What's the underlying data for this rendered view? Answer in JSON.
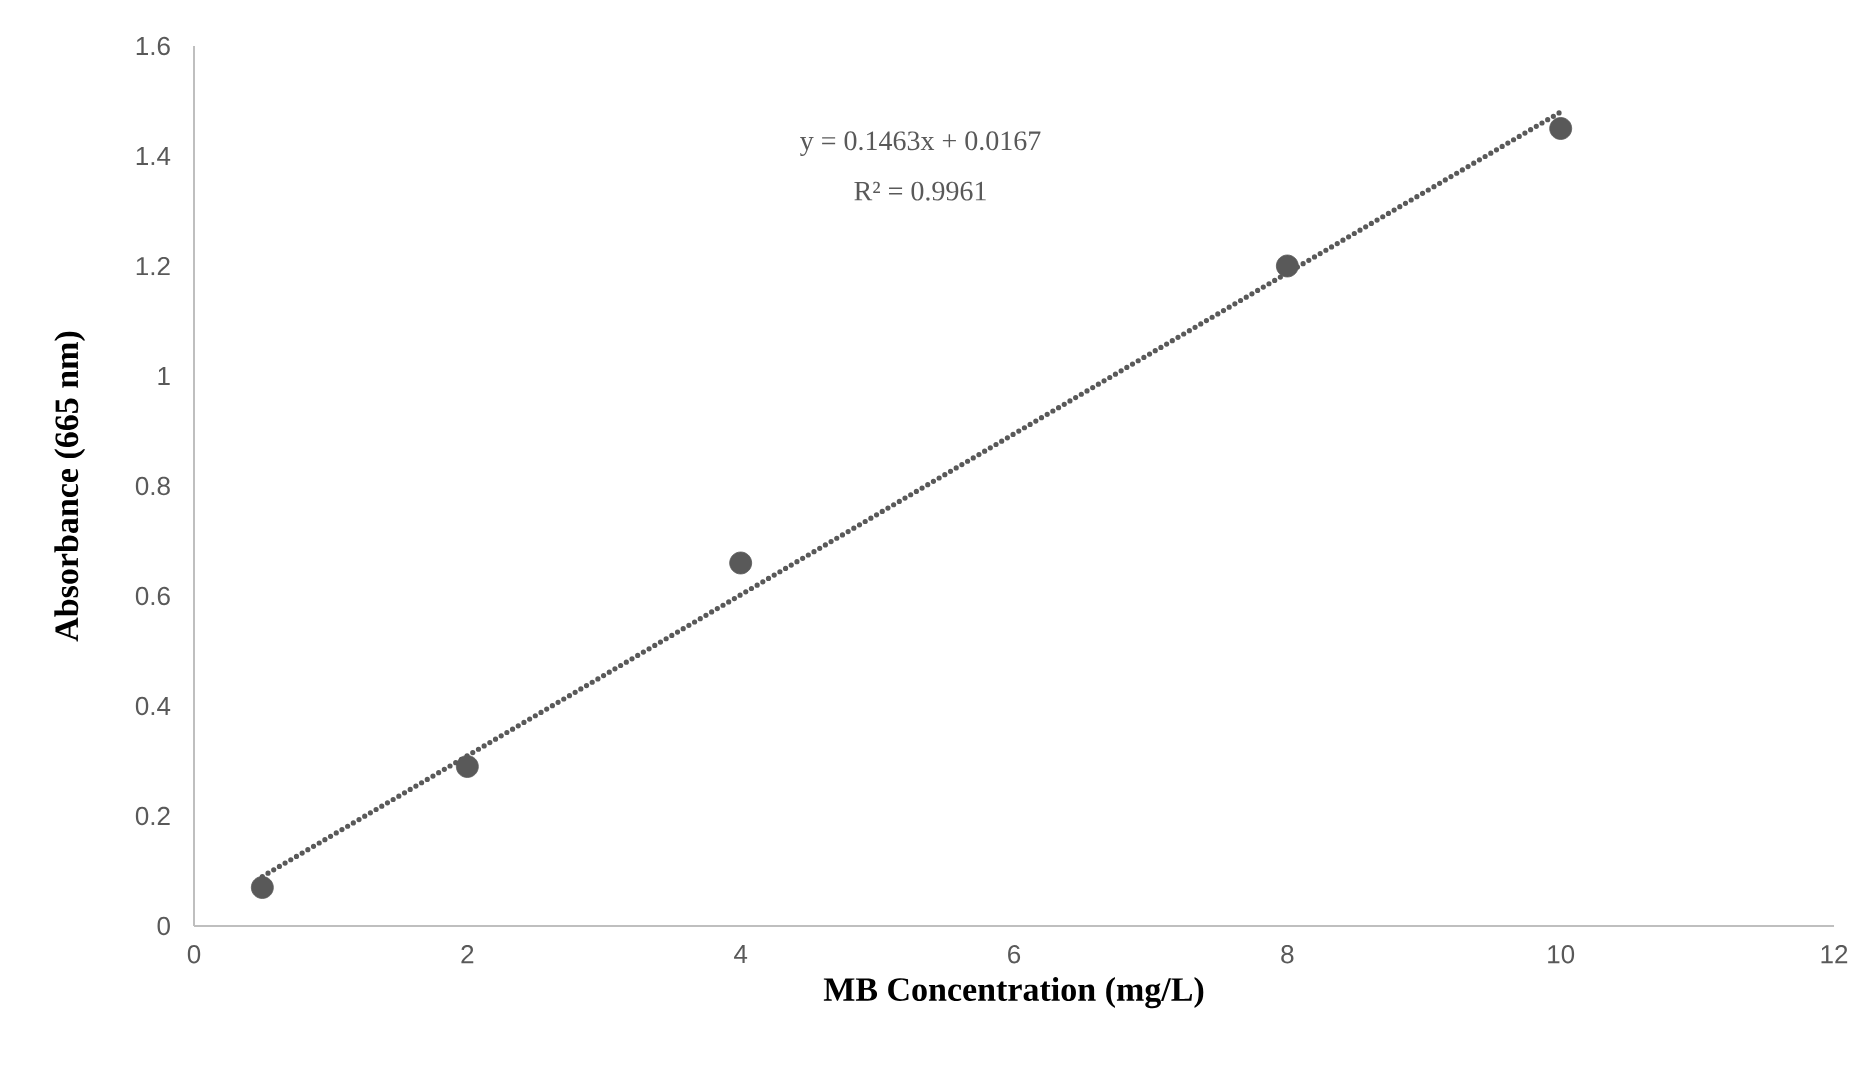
{
  "chart_data": {
    "type": "scatter",
    "xlabel": "MB Concentration (mg/L)",
    "ylabel": "Absorbance (665 nm)",
    "annotations": [
      "y = 0.1463x + 0.0167",
      "R² = 0.9961"
    ],
    "xlim": [
      0,
      12
    ],
    "ylim": [
      0,
      1.6
    ],
    "xticks": [
      0,
      2,
      4,
      6,
      8,
      10,
      12
    ],
    "yticks": [
      0,
      0.2,
      0.4,
      0.6,
      0.8,
      1,
      1.2,
      1.4,
      1.6
    ],
    "grid": false,
    "series": [
      {
        "color": "#595959",
        "marker": "circle",
        "x": [
          0.5,
          2,
          4,
          8,
          10
        ],
        "values": [
          0.07,
          0.29,
          0.66,
          1.2,
          1.45
        ]
      },
      {
        "type": "line",
        "color": "#595959",
        "marker": "none",
        "line_style": "dotted",
        "x": [
          0.5,
          10
        ],
        "values": [
          0.09,
          1.48
        ]
      }
    ]
  }
}
